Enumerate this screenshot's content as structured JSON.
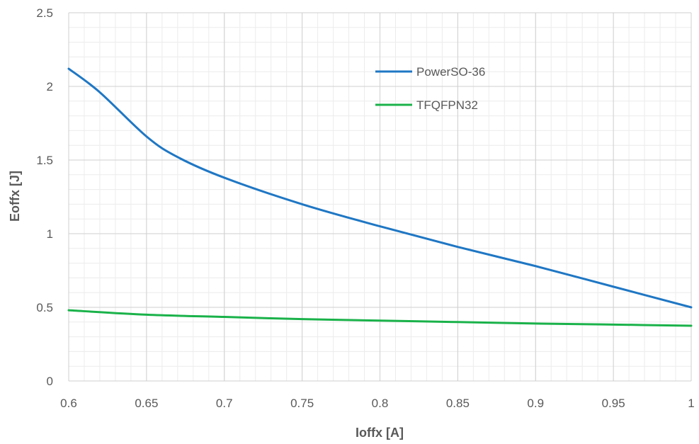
{
  "chart_data": {
    "type": "line",
    "title": "",
    "xlabel": "Ioffx [A]",
    "ylabel": "Eoffx [J]",
    "xlim": [
      0.6,
      1.0
    ],
    "ylim": [
      0,
      2.5
    ],
    "x_ticks": [
      "0.6",
      "0.65",
      "0.7",
      "0.75",
      "0.8",
      "0.85",
      "0.9",
      "0.95",
      "1"
    ],
    "y_ticks": [
      "0",
      "0.5",
      "1",
      "1.5",
      "2",
      "2.5"
    ],
    "grid": true,
    "minor_grid": true,
    "legend_position": "top-right-inside",
    "series": [
      {
        "name": "PowerSO-36",
        "color": "#1f77c4",
        "x": [
          0.6,
          0.62,
          0.65,
          0.67,
          0.7,
          0.75,
          0.8,
          0.85,
          0.9,
          0.95,
          1.0
        ],
        "y": [
          2.12,
          1.96,
          1.66,
          1.52,
          1.38,
          1.2,
          1.05,
          0.91,
          0.78,
          0.64,
          0.5
        ]
      },
      {
        "name": "TFQFPN32",
        "color": "#1ab24a",
        "x": [
          0.6,
          0.65,
          0.7,
          0.75,
          0.8,
          0.85,
          0.9,
          0.95,
          1.0
        ],
        "y": [
          0.48,
          0.45,
          0.435,
          0.42,
          0.41,
          0.4,
          0.39,
          0.383,
          0.375
        ]
      }
    ]
  }
}
